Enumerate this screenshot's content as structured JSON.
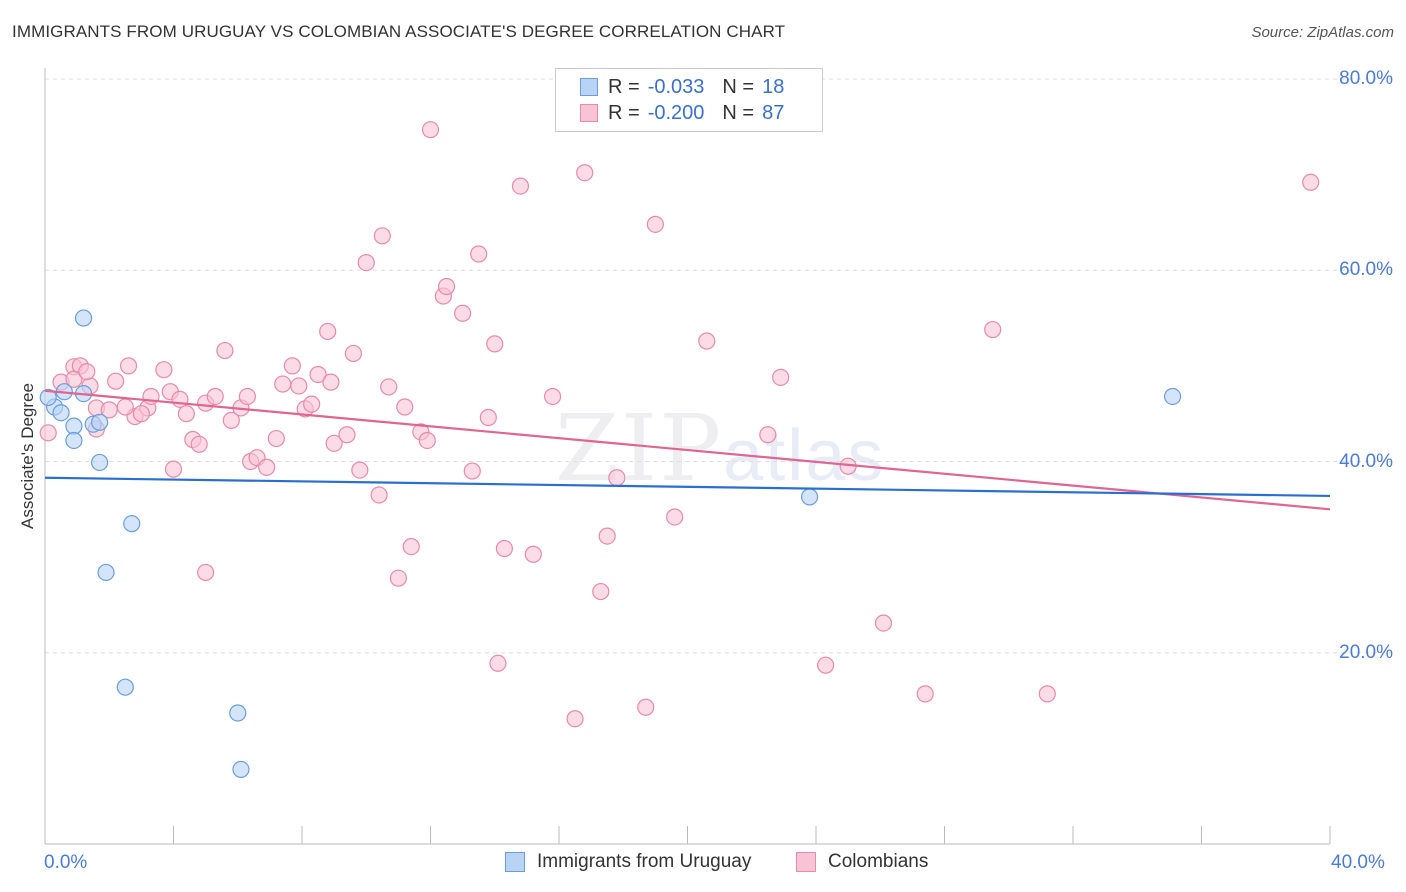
{
  "header": {
    "title": "IMMIGRANTS FROM URUGUAY VS COLOMBIAN ASSOCIATE'S DEGREE CORRELATION CHART",
    "source": "Source: ZipAtlas.com"
  },
  "watermark": {
    "main": "ZIP",
    "sub": "atlas"
  },
  "legend": {
    "rows": [
      {
        "r_label": "R =",
        "r_value": "-0.033",
        "n_label": "N =",
        "n_value": "18"
      },
      {
        "r_label": "R =",
        "r_value": "-0.200",
        "n_label": "N =",
        "n_value": "87"
      }
    ]
  },
  "bottom_legend": {
    "items": [
      {
        "label": "Immigrants from Uruguay"
      },
      {
        "label": "Colombians"
      }
    ]
  },
  "colors": {
    "uruguay_fill": "#b9d3f5",
    "uruguay_stroke": "#6a9de0",
    "uruguay_line": "#2a6fd0",
    "colombian_fill": "#f8c3d4",
    "colombian_stroke": "#e98aaa",
    "colombian_line": "#e06591",
    "tick_text": "#4a7bd6"
  },
  "axes": {
    "x_left_label": "0.0%",
    "x_right_label": "40.0%",
    "y_ticks": [
      "80.0%",
      "60.0%",
      "40.0%",
      "20.0%"
    ],
    "ylabel": "Associate's Degree"
  },
  "chart_data": {
    "type": "scatter",
    "title": "IMMIGRANTS FROM URUGUAY VS COLOMBIAN ASSOCIATE'S DEGREE CORRELATION CHART",
    "xlabel": "",
    "ylabel": "Associate's Degree",
    "xlim": [
      0,
      40
    ],
    "ylim": [
      0,
      80
    ],
    "x_unit": "%",
    "y_unit": "%",
    "grid": "horizontal dashed",
    "legend_position": "top-center",
    "series": [
      {
        "name": "Immigrants from Uruguay",
        "r": -0.033,
        "n": 18,
        "trend": {
          "x": [
            0,
            40
          ],
          "y": [
            38.3,
            36.4
          ]
        },
        "points": [
          [
            0.3,
            45.7
          ],
          [
            0.6,
            47.3
          ],
          [
            1.2,
            47.1
          ],
          [
            0.9,
            43.7
          ],
          [
            0.5,
            45.1
          ],
          [
            0.9,
            42.2
          ],
          [
            1.5,
            43.9
          ],
          [
            1.2,
            55.0
          ],
          [
            1.7,
            44.1
          ],
          [
            1.7,
            39.9
          ],
          [
            2.7,
            33.5
          ],
          [
            1.9,
            28.4
          ],
          [
            2.5,
            16.4
          ],
          [
            6.0,
            13.7
          ],
          [
            6.1,
            7.8
          ],
          [
            23.8,
            36.3
          ],
          [
            35.1,
            46.8
          ],
          [
            0.1,
            46.7
          ]
        ]
      },
      {
        "name": "Colombians",
        "r": -0.2,
        "n": 87,
        "trend": {
          "x": [
            0,
            40
          ],
          "y": [
            47.4,
            35.0
          ]
        },
        "points": [
          [
            0.1,
            43.0
          ],
          [
            0.5,
            48.3
          ],
          [
            0.9,
            49.9
          ],
          [
            1.1,
            50.0
          ],
          [
            1.4,
            47.9
          ],
          [
            1.6,
            45.6
          ],
          [
            2.0,
            45.4
          ],
          [
            2.2,
            48.4
          ],
          [
            2.6,
            50.0
          ],
          [
            2.8,
            44.7
          ],
          [
            3.2,
            45.6
          ],
          [
            3.3,
            46.8
          ],
          [
            3.7,
            49.6
          ],
          [
            3.9,
            47.3
          ],
          [
            4.2,
            46.5
          ],
          [
            4.4,
            45.0
          ],
          [
            4.6,
            42.3
          ],
          [
            4.8,
            41.8
          ],
          [
            5.0,
            46.1
          ],
          [
            5.3,
            46.8
          ],
          [
            5.6,
            51.6
          ],
          [
            5.8,
            44.3
          ],
          [
            6.1,
            45.6
          ],
          [
            6.3,
            46.8
          ],
          [
            6.4,
            40.0
          ],
          [
            6.6,
            40.4
          ],
          [
            6.9,
            39.4
          ],
          [
            7.2,
            42.4
          ],
          [
            7.4,
            48.1
          ],
          [
            7.7,
            50.0
          ],
          [
            7.9,
            47.9
          ],
          [
            8.1,
            45.5
          ],
          [
            8.3,
            46.0
          ],
          [
            8.5,
            49.1
          ],
          [
            8.8,
            53.6
          ],
          [
            8.9,
            48.3
          ],
          [
            9.0,
            41.9
          ],
          [
            9.4,
            42.8
          ],
          [
            9.6,
            51.3
          ],
          [
            9.8,
            39.1
          ],
          [
            10.0,
            60.8
          ],
          [
            10.4,
            36.5
          ],
          [
            10.5,
            63.6
          ],
          [
            10.7,
            47.8
          ],
          [
            11.0,
            27.8
          ],
          [
            11.2,
            45.7
          ],
          [
            11.4,
            31.1
          ],
          [
            11.7,
            43.1
          ],
          [
            11.9,
            42.2
          ],
          [
            12.0,
            74.7
          ],
          [
            12.4,
            57.3
          ],
          [
            12.5,
            58.3
          ],
          [
            13.0,
            55.5
          ],
          [
            13.3,
            39.0
          ],
          [
            13.5,
            61.7
          ],
          [
            13.8,
            44.6
          ],
          [
            14.0,
            52.3
          ],
          [
            14.1,
            18.9
          ],
          [
            14.3,
            30.9
          ],
          [
            14.8,
            68.8
          ],
          [
            15.2,
            30.3
          ],
          [
            15.8,
            46.8
          ],
          [
            16.5,
            13.1
          ],
          [
            16.8,
            70.2
          ],
          [
            17.3,
            26.4
          ],
          [
            17.5,
            32.2
          ],
          [
            17.8,
            38.3
          ],
          [
            18.7,
            14.3
          ],
          [
            19.0,
            64.8
          ],
          [
            19.6,
            34.2
          ],
          [
            20.6,
            52.6
          ],
          [
            22.5,
            42.8
          ],
          [
            22.9,
            48.8
          ],
          [
            24.3,
            18.7
          ],
          [
            25.0,
            39.5
          ],
          [
            26.1,
            23.1
          ],
          [
            27.4,
            15.7
          ],
          [
            29.5,
            53.8
          ],
          [
            31.2,
            15.7
          ],
          [
            39.4,
            69.2
          ],
          [
            0.9,
            48.6
          ],
          [
            1.3,
            49.4
          ],
          [
            5.0,
            28.4
          ],
          [
            4.0,
            39.2
          ],
          [
            2.5,
            45.7
          ],
          [
            3.0,
            45.0
          ],
          [
            1.6,
            43.4
          ]
        ]
      }
    ]
  }
}
